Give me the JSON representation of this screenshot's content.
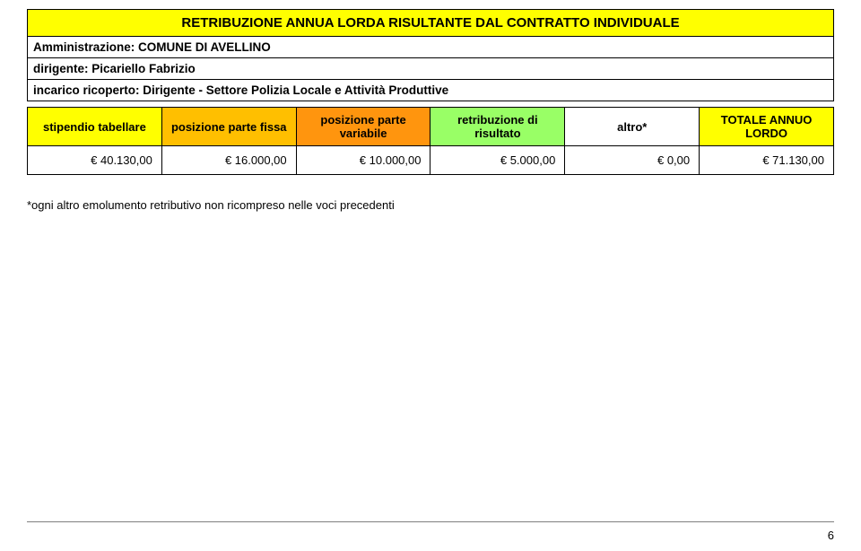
{
  "title": "RETRIBUZIONE ANNUA LORDA RISULTANTE DAL CONTRATTO INDIVIDUALE",
  "administration_label": "Amministrazione: COMUNE DI AVELLINO",
  "manager_label": "dirigente: Picariello Fabrizio",
  "role_label": "incarico ricoperto: Dirigente - Settore Polizia Locale e Attività Produttive",
  "headers": {
    "c0": {
      "text": "stipendio tabellare",
      "bg": "#ffff00"
    },
    "c1": {
      "text": "posizione parte fissa",
      "bg": "#ffbf00"
    },
    "c2": {
      "text": "posizione parte variabile",
      "bg": "#ff950e"
    },
    "c3": {
      "text": "retribuzione di risultato",
      "bg": "#99ff66"
    },
    "c4": {
      "text": "altro*",
      "bg": "#ffffff"
    },
    "c5": {
      "text": "TOTALE ANNUO LORDO",
      "bg": "#ffff00"
    }
  },
  "row": {
    "c0": "€ 40.130,00",
    "c1": "€ 16.000,00",
    "c2": "€ 10.000,00",
    "c3": "€ 5.000,00",
    "c4": "€ 0,00",
    "c5": "€ 71.130,00"
  },
  "footnote": "*ogni altro emolumento retributivo non ricompreso nelle voci precedenti",
  "page_number": "6",
  "colors": {
    "yellow": "#ffff00",
    "amber": "#ffbf00",
    "orange": "#ff950e",
    "green": "#99ff66",
    "white": "#ffffff",
    "border": "#000000"
  },
  "fonts": {
    "title_pt": 15,
    "info_pt": 13.5,
    "cell_pt": 13
  }
}
